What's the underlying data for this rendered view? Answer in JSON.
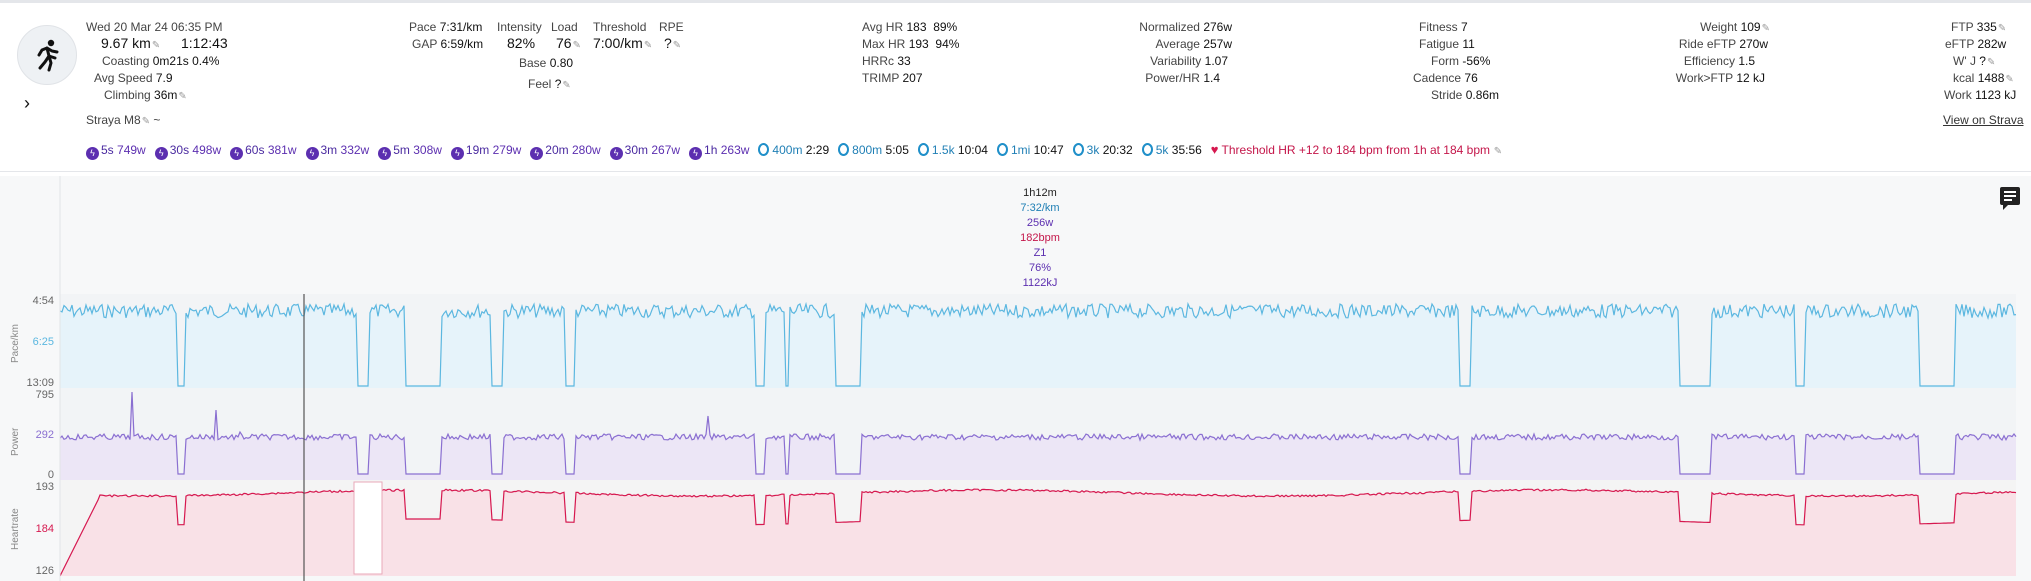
{
  "activity": {
    "datetime": "Wed 20 Mar 24 06:35 PM",
    "distance": "9.67 km",
    "duration": "1:12:43",
    "coasting_label": "Coasting",
    "coasting_value": "0m21s",
    "coasting_pct": "0.4%",
    "avg_speed_label": "Avg Speed",
    "avg_speed_value": "7.9",
    "climbing_label": "Climbing",
    "climbing_value": "36m",
    "shoe": "Straya M8",
    "shoe_suffix": "~"
  },
  "col2": {
    "pace_label": "Pace",
    "pace_value": "7:31/km",
    "gap_label": "GAP",
    "gap_value": "6:59/km",
    "intensity_label": "Intensity",
    "intensity_value": "82%",
    "load_label": "Load",
    "load_value": "76",
    "base_label": "Base",
    "base_value": "0.80",
    "feel_label": "Feel",
    "feel_value": "?",
    "threshold_label": "Threshold",
    "threshold_value": "7:00/km",
    "rpe_label": "RPE",
    "rpe_value": "?"
  },
  "col3": {
    "avghr_label": "Avg HR",
    "avghr_value": "183",
    "avghr_pct": "89%",
    "maxhr_label": "Max HR",
    "maxhr_value": "193",
    "maxhr_pct": "94%",
    "hrrc_label": "HRRc",
    "hrrc_value": "33",
    "trimp_label": "TRIMP",
    "trimp_value": "207"
  },
  "col4": {
    "normalized_label": "Normalized",
    "normalized_value": "276w",
    "average_label": "Average",
    "average_value": "257w",
    "variability_label": "Variability",
    "variability_value": "1.07",
    "powerhr_label": "Power/HR",
    "powerhr_value": "1.4"
  },
  "col5": {
    "fitness_label": "Fitness",
    "fitness_value": "7",
    "fatigue_label": "Fatigue",
    "fatigue_value": "11",
    "form_label": "Form",
    "form_value": "-56%",
    "cadence_label": "Cadence",
    "cadence_value": "76",
    "stride_label": "Stride",
    "stride_value": "0.86m"
  },
  "col6": {
    "weight_label": "Weight",
    "weight_value": "109",
    "rideftp_label": "Ride eFTP",
    "rideftp_value": "270w",
    "efficiency_label": "Efficiency",
    "efficiency_value": "1.5",
    "workftp_label": "Work>FTP",
    "workftp_value": "12 kJ"
  },
  "col7": {
    "ftp_label": "FTP",
    "ftp_value": "335",
    "eftp_label": "eFTP",
    "eftp_value": "282w",
    "wj_label": "W' J",
    "wj_value": "?",
    "kcal_label": "kcal",
    "kcal_value": "1488",
    "work_label": "Work",
    "work_value": "1123 kJ",
    "view_strava": "View on Strava"
  },
  "peaks": [
    {
      "d": "5s",
      "v": "749w"
    },
    {
      "d": "30s",
      "v": "498w"
    },
    {
      "d": "60s",
      "v": "381w"
    },
    {
      "d": "3m",
      "v": "332w"
    },
    {
      "d": "5m",
      "v": "308w"
    },
    {
      "d": "19m",
      "v": "279w"
    },
    {
      "d": "20m",
      "v": "280w"
    },
    {
      "d": "30m",
      "v": "267w"
    },
    {
      "d": "1h",
      "v": "263w"
    }
  ],
  "runs": [
    {
      "d": "400m",
      "t": "2:29"
    },
    {
      "d": "800m",
      "t": "5:05"
    },
    {
      "d": "1.5k",
      "t": "10:04"
    },
    {
      "d": "1mi",
      "t": "10:47"
    },
    {
      "d": "3k",
      "t": "20:32"
    },
    {
      "d": "5k",
      "t": "35:56"
    }
  ],
  "threshold_note": "Threshold HR +12 to 184 bpm from 1h at 184 bpm",
  "hover": {
    "time": "1h12m",
    "pace": "7:32/km",
    "power": "256w",
    "hr": "182bpm",
    "zone": "Z1",
    "pct": "76%",
    "kj": "1122kJ"
  },
  "chart_data": [
    {
      "type": "area",
      "title": "",
      "ylabel": "Pace/km",
      "ticks": [
        "4:54",
        "6:25",
        "13:09"
      ],
      "color": "#5bb7e0"
    },
    {
      "type": "area",
      "title": "",
      "ylabel": "Power",
      "ticks": [
        "795",
        "292",
        "0"
      ],
      "color": "#8a6fd1"
    },
    {
      "type": "area",
      "title": "",
      "ylabel": "Heartrate",
      "ticks": [
        "193",
        "184",
        "126"
      ],
      "color": "#d6184f"
    }
  ],
  "colors": {
    "pace": "#5bb7e0",
    "power": "#8a6fd1",
    "hr": "#d6184f",
    "accent": "#5c2fb0"
  }
}
